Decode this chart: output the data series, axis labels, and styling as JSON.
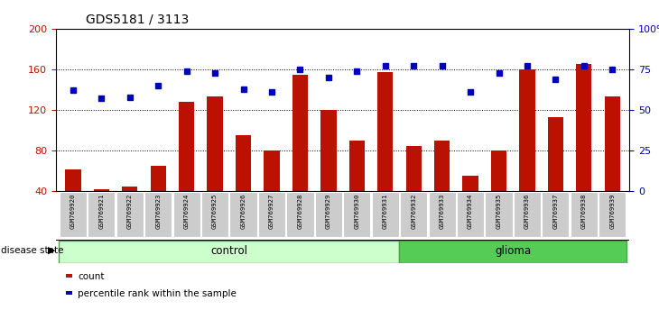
{
  "title": "GDS5181 / 3113",
  "samples": [
    "GSM769920",
    "GSM769921",
    "GSM769922",
    "GSM769923",
    "GSM769924",
    "GSM769925",
    "GSM769926",
    "GSM769927",
    "GSM769928",
    "GSM769929",
    "GSM769930",
    "GSM769931",
    "GSM769932",
    "GSM769933",
    "GSM769934",
    "GSM769935",
    "GSM769936",
    "GSM769937",
    "GSM769938",
    "GSM769939"
  ],
  "counts": [
    62,
    42,
    45,
    65,
    128,
    133,
    95,
    80,
    155,
    120,
    90,
    157,
    85,
    90,
    55,
    80,
    160,
    113,
    165,
    133
  ],
  "percentiles_pct": [
    62,
    57,
    58,
    65,
    74,
    73,
    63,
    61,
    75,
    70,
    74,
    77,
    77,
    77,
    61,
    73,
    77,
    69,
    77,
    75
  ],
  "control_count": 12,
  "ylim_left": [
    40,
    200
  ],
  "ylim_right": [
    0,
    100
  ],
  "yticks_left": [
    40,
    80,
    120,
    160,
    200
  ],
  "yticks_right": [
    0,
    25,
    50,
    75,
    100
  ],
  "ytick_labels_right": [
    "0",
    "25",
    "50",
    "75",
    "100%"
  ],
  "bar_color": "#bb1100",
  "dot_color": "#0000bb",
  "control_fill": "#ccffcc",
  "glioma_fill": "#55cc55",
  "tick_bg": "#cccccc",
  "label_disease": "disease state",
  "label_control": "control",
  "label_glioma": "glioma",
  "legend_count": "count",
  "legend_percentile": "percentile rank within the sample",
  "bg_color": "#ffffff"
}
